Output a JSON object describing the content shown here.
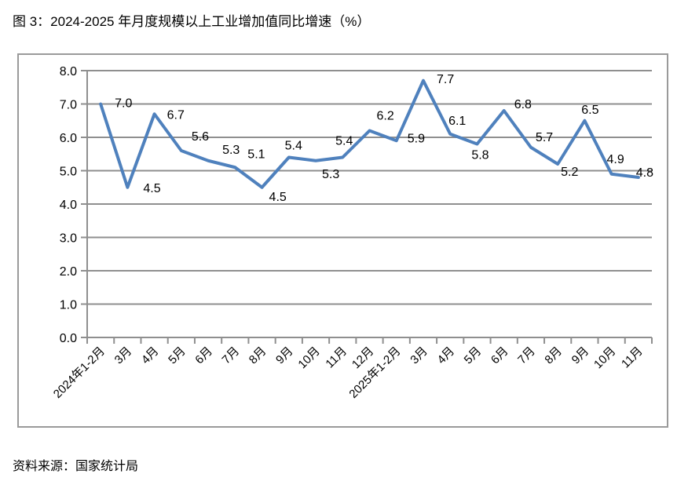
{
  "chart_data": {
    "type": "line",
    "title": "图 3：2024-2025 年月度规模以上工业增加值同比增速（%）",
    "categories": [
      "2024年1-2月",
      "3月",
      "4月",
      "5月",
      "6月",
      "7月",
      "8月",
      "9月",
      "10月",
      "11月",
      "12月",
      "2025年1-2月",
      "3月",
      "4月",
      "5月",
      "6月",
      "7月",
      "8月",
      "9月",
      "10月",
      "11月"
    ],
    "values": [
      7.0,
      4.5,
      6.7,
      5.6,
      5.3,
      5.1,
      4.5,
      5.4,
      5.3,
      5.4,
      6.2,
      5.9,
      7.7,
      6.1,
      5.8,
      6.8,
      5.7,
      5.2,
      6.5,
      4.9,
      4.8
    ],
    "xlabel": "",
    "ylabel": "",
    "ylim": [
      0,
      8
    ],
    "ytick_step": 1,
    "grid": true,
    "legend_position": "none",
    "data_labels_visible": true,
    "colors": {
      "line": "#4F81BD",
      "grid": "#8f8f8f",
      "axis": "#8f8f8f",
      "border": "#9a9a9a",
      "text": "#000000"
    },
    "label_offsets": [
      [
        18,
        4,
        "start"
      ],
      [
        20,
        6,
        "start"
      ],
      [
        16,
        6,
        "start"
      ],
      [
        13,
        -13,
        "start"
      ],
      [
        18,
        -9,
        "start"
      ],
      [
        16,
        -12,
        "start"
      ],
      [
        9,
        17,
        "start"
      ],
      [
        6,
        -10,
        "middle"
      ],
      [
        8,
        22,
        "start"
      ],
      [
        2,
        -16,
        "middle"
      ],
      [
        9,
        -14,
        "start"
      ],
      [
        14,
        2,
        "start"
      ],
      [
        17,
        3,
        "start"
      ],
      [
        9,
        -12,
        "middle"
      ],
      [
        4,
        19,
        "middle"
      ],
      [
        13,
        -3,
        "start"
      ],
      [
        6,
        -8,
        "start"
      ],
      [
        4,
        15,
        "start"
      ],
      [
        7,
        -9,
        "middle"
      ],
      [
        5,
        -14,
        "middle"
      ],
      [
        8,
        -1,
        "middle"
      ]
    ]
  },
  "footer": {
    "source": "资料来源：国家统计局"
  }
}
